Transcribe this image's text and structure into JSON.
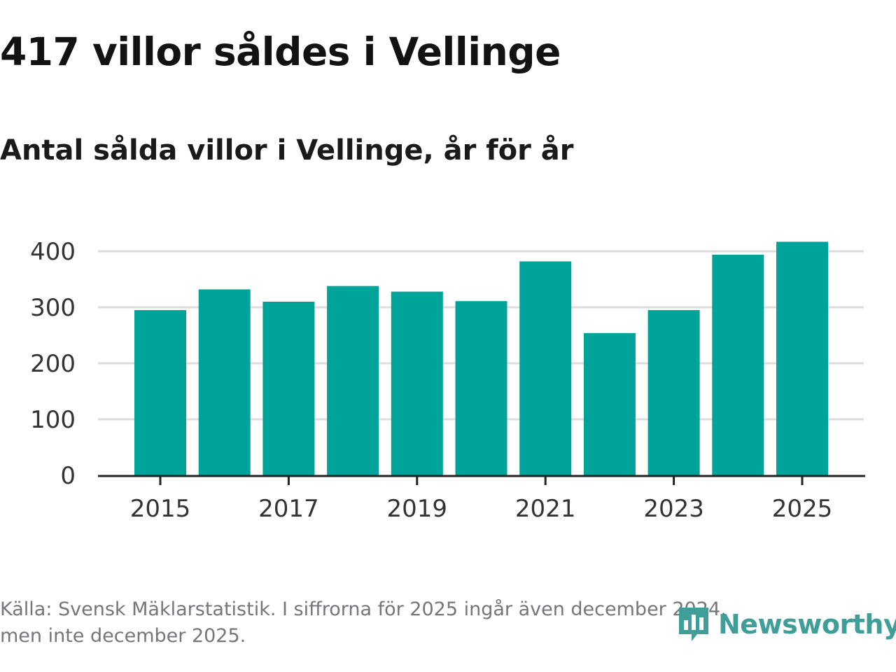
{
  "header": {
    "title": "417 villor såldes i Vellinge",
    "subtitle": "Antal sålda villor i Vellinge, år för år"
  },
  "footer": {
    "source_line1": "Källa: Svensk Mäklarstatistik. I siffrorna för 2025 ingår även december 2024,",
    "source_line2": "men inte december 2025."
  },
  "logo": {
    "text": "Newsworthy",
    "icon": "bar-chart-speech-bubble-icon",
    "color": "#3f9e97"
  },
  "colors": {
    "bar": "#00a39a",
    "grid": "#dddddd",
    "axis": "#222222",
    "footer_text": "#76767a"
  },
  "chart_data": {
    "type": "bar",
    "title": "Antal sålda villor i Vellinge, år för år",
    "xlabel": "",
    "ylabel": "",
    "categories": [
      "2015",
      "2016",
      "2017",
      "2018",
      "2019",
      "2020",
      "2021",
      "2022",
      "2023",
      "2024",
      "2025"
    ],
    "values": [
      295,
      332,
      310,
      338,
      328,
      311,
      382,
      254,
      295,
      394,
      417
    ],
    "ylim": [
      0,
      400
    ],
    "yticks": [
      0,
      100,
      200,
      300,
      400
    ],
    "xtick_labels": [
      "2015",
      "2017",
      "2019",
      "2021",
      "2023",
      "2025"
    ],
    "grid": true
  }
}
